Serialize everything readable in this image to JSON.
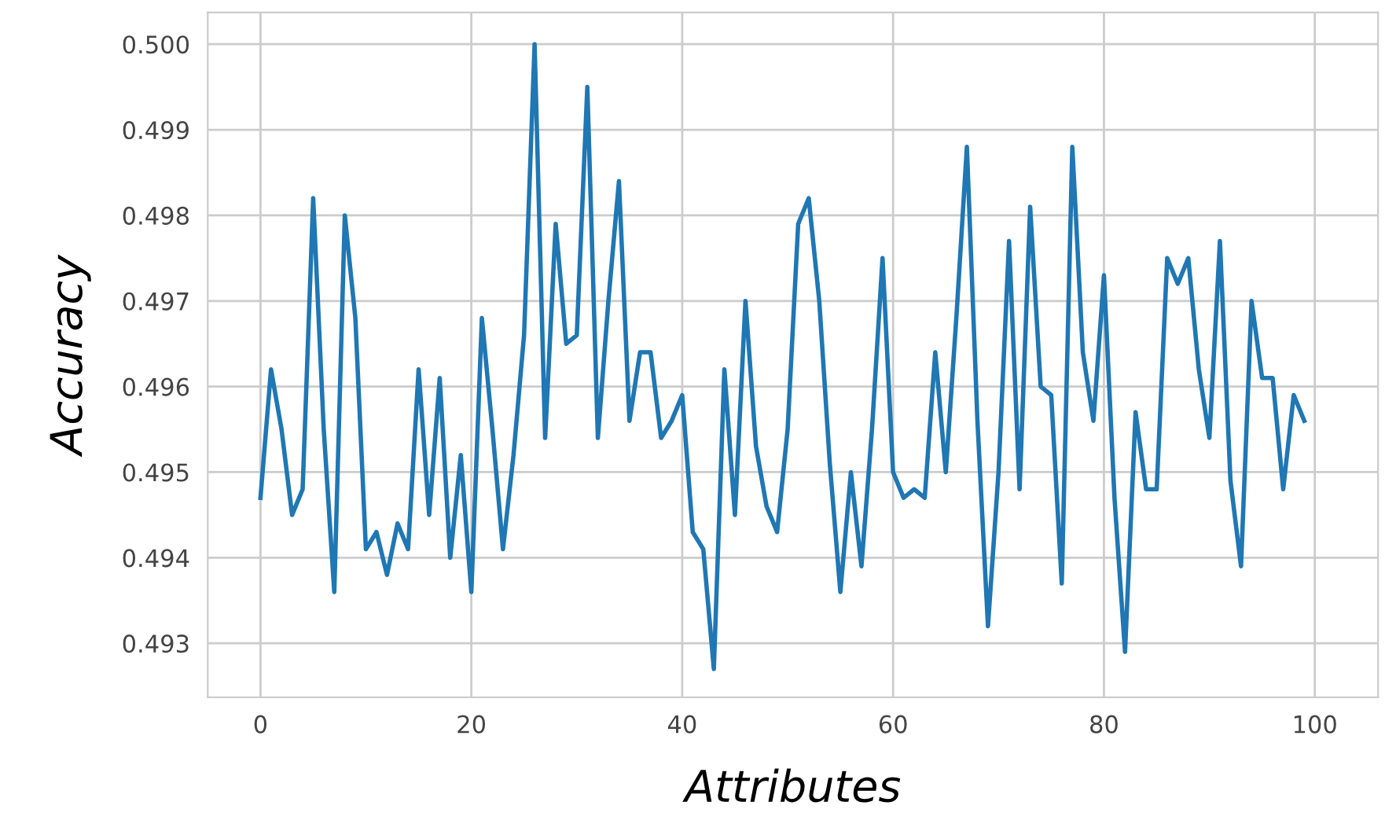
{
  "chart_data": {
    "type": "line",
    "xlabel": "Attributes",
    "ylabel": "Accuracy",
    "x": [
      0,
      1,
      2,
      3,
      4,
      5,
      6,
      7,
      8,
      9,
      10,
      11,
      12,
      13,
      14,
      15,
      16,
      17,
      18,
      19,
      20,
      21,
      22,
      23,
      24,
      25,
      26,
      27,
      28,
      29,
      30,
      31,
      32,
      33,
      34,
      35,
      36,
      37,
      38,
      39,
      40,
      41,
      42,
      43,
      44,
      45,
      46,
      47,
      48,
      49,
      50,
      51,
      52,
      53,
      54,
      55,
      56,
      57,
      58,
      59,
      60,
      61,
      62,
      63,
      64,
      65,
      66,
      67,
      68,
      69,
      70,
      71,
      72,
      73,
      74,
      75,
      76,
      77,
      78,
      79,
      80,
      81,
      82,
      83,
      84,
      85,
      86,
      87,
      88,
      89,
      90,
      91,
      92,
      93,
      94,
      95,
      96,
      97,
      98,
      99
    ],
    "series": [
      {
        "color": "#1f77b4",
        "values": [
          0.4947,
          0.4962,
          0.4955,
          0.4945,
          0.4948,
          0.4982,
          0.4955,
          0.4936,
          0.498,
          0.4968,
          0.4941,
          0.4943,
          0.4938,
          0.4944,
          0.4941,
          0.4962,
          0.4945,
          0.4961,
          0.494,
          0.4952,
          0.4936,
          0.4968,
          0.4955,
          0.4941,
          0.4952,
          0.4966,
          0.5,
          0.4954,
          0.4979,
          0.4965,
          0.4966,
          0.4995,
          0.4954,
          0.497,
          0.4984,
          0.4956,
          0.4964,
          0.4964,
          0.4954,
          0.4956,
          0.4959,
          0.4943,
          0.4941,
          0.4927,
          0.4962,
          0.4945,
          0.497,
          0.4953,
          0.4946,
          0.4943,
          0.4955,
          0.4979,
          0.4982,
          0.497,
          0.4951,
          0.4936,
          0.495,
          0.4939,
          0.4955,
          0.4975,
          0.495,
          0.4947,
          0.4948,
          0.4947,
          0.4964,
          0.495,
          0.4968,
          0.4988,
          0.4956,
          0.4932,
          0.495,
          0.4977,
          0.4948,
          0.4981,
          0.496,
          0.4959,
          0.4937,
          0.4988,
          0.4964,
          0.4956,
          0.4973,
          0.4947,
          0.4929,
          0.4957,
          0.4948,
          0.4948,
          0.4975,
          0.4972,
          0.4975,
          0.4962,
          0.4954,
          0.4977,
          0.4949,
          0.4939,
          0.497,
          0.4961,
          0.4961,
          0.4948,
          0.4959,
          0.4956
        ]
      }
    ],
    "xlim": [
      -5,
      106
    ],
    "ylim": [
      0.49237,
      0.50037
    ],
    "xticks": [
      0,
      20,
      40,
      60,
      80,
      100
    ],
    "yticks": [
      {
        "value": 0.493,
        "label": "0.493"
      },
      {
        "value": 0.494,
        "label": "0.494"
      },
      {
        "value": 0.495,
        "label": "0.495"
      },
      {
        "value": 0.496,
        "label": "0.496"
      },
      {
        "value": 0.497,
        "label": "0.497"
      },
      {
        "value": 0.498,
        "label": "0.498"
      },
      {
        "value": 0.499,
        "label": "0.499"
      },
      {
        "value": 0.5,
        "label": "0.500"
      }
    ],
    "grid": true
  }
}
